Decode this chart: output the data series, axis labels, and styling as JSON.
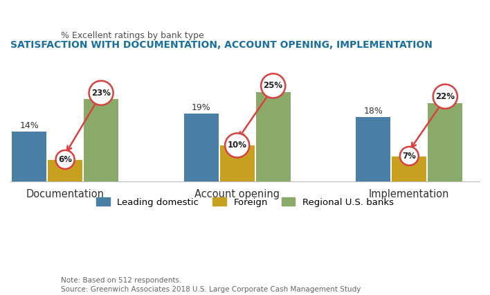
{
  "title": "SATISFACTION WITH DOCUMENTATION, ACCOUNT OPENING, IMPLEMENTATION",
  "subtitle": "% Excellent ratings by bank type",
  "categories": [
    "Documentation",
    "Account opening",
    "Implementation"
  ],
  "series": {
    "Leading domestic": [
      14,
      19,
      18
    ],
    "Foreign": [
      6,
      10,
      7
    ],
    "Regional U.S. banks": [
      23,
      25,
      22
    ]
  },
  "colors": {
    "Leading domestic": "#4a7fa5",
    "Foreign": "#c8a020",
    "Regional U.S. banks": "#8aaa6a"
  },
  "note": "Note: Based on 512 respondents.",
  "source": "Source: Greenwich Associates 2018 U.S. Large Corporate Cash Management Study",
  "title_color": "#1a6fa0",
  "subtitle_color": "#505050",
  "arrow_color": "#d94040",
  "circle_edgecolor": "#d94040",
  "ylim": [
    0,
    30
  ],
  "bar_width": 0.22,
  "group_centers": [
    0.35,
    1.45,
    2.55
  ]
}
